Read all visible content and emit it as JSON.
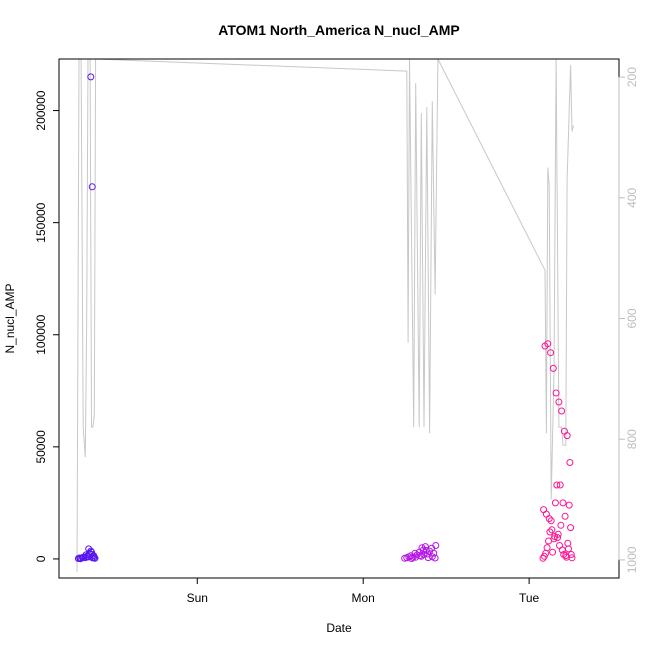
{
  "chart_data": {
    "type": "scatter",
    "title": "ATOM1 North_America N_nucl_AMP",
    "xlabel": "Date",
    "ylabel": "N_nucl_AMP",
    "x_ticks": [
      "Sun",
      "Mon",
      "Tue"
    ],
    "x_tick_hours": [
      24,
      48,
      72
    ],
    "xlim_hours": [
      4,
      85
    ],
    "ylim": [
      -8500,
      223000
    ],
    "y_ticks": [
      0,
      50000,
      100000,
      150000,
      200000
    ],
    "y_tick_labels": [
      "0",
      "50000",
      "100000",
      "150000",
      "200000"
    ],
    "right_axis": {
      "inverted": true,
      "ylim": [
        1030,
        170
      ],
      "ticks": [
        200,
        400,
        600,
        800,
        1000
      ],
      "tick_labels": [
        "200",
        "400",
        "600",
        "800",
        "1000"
      ],
      "color": "#bdbdbd"
    },
    "grid": false,
    "colors": {
      "line": "#c8c8c8",
      "point_start": "#5a16f0",
      "point_mid": "#b414e6",
      "point_end": "#ff1493"
    },
    "line_series": {
      "points": [
        [
          6.6,
          1020
        ],
        [
          6.9,
          170
        ],
        [
          7.2,
          170
        ],
        [
          7.5,
          780
        ],
        [
          7.8,
          830
        ],
        [
          8.0,
          600
        ],
        [
          8.2,
          170
        ],
        [
          8.5,
          170
        ],
        [
          8.7,
          780
        ],
        [
          8.9,
          780
        ],
        [
          9.1,
          760
        ],
        [
          9.3,
          170
        ],
        [
          54.3,
          190
        ],
        [
          54.5,
          640
        ],
        [
          54.7,
          170
        ],
        [
          55.3,
          780
        ],
        [
          55.6,
          210
        ],
        [
          56.1,
          780
        ],
        [
          56.4,
          260
        ],
        [
          56.8,
          780
        ],
        [
          57.2,
          250
        ],
        [
          57.6,
          790
        ],
        [
          58.0,
          240
        ],
        [
          58.4,
          560
        ],
        [
          58.8,
          170
        ],
        [
          74.3,
          520
        ],
        [
          74.5,
          790
        ],
        [
          74.7,
          350
        ],
        [
          74.9,
          380
        ],
        [
          75.2,
          900
        ],
        [
          75.6,
          690
        ],
        [
          75.9,
          170
        ],
        [
          76.3,
          780
        ],
        [
          76.7,
          780
        ],
        [
          76.9,
          810
        ],
        [
          77.3,
          810
        ],
        [
          77.5,
          370
        ],
        [
          78.0,
          180
        ],
        [
          78.2,
          290
        ],
        [
          78.4,
          280
        ]
      ]
    },
    "series": [
      {
        "x": [
          6.8,
          7.0,
          7.2,
          7.4,
          7.6,
          7.8,
          8.0,
          8.2,
          8.4,
          8.6,
          8.8,
          9.0,
          9.2,
          7.1,
          7.5,
          7.9,
          8.3,
          8.7,
          9.1,
          8.2,
          8.5,
          8.8,
          9.0,
          8.6,
          8.8
        ],
        "y": [
          200,
          400,
          300,
          600,
          800,
          500,
          1200,
          900,
          2500,
          3500,
          2000,
          1500,
          300,
          100,
          700,
          1800,
          4500,
          3000,
          800,
          1000,
          2200,
          600,
          400,
          215000,
          166000
        ]
      },
      {
        "x": [
          54.0,
          54.3,
          54.6,
          54.9,
          55.2,
          55.5,
          55.8,
          56.1,
          56.4,
          56.7,
          57.0,
          57.3,
          57.6,
          57.9,
          58.2,
          58.5,
          55.0,
          55.6,
          56.2,
          56.8,
          57.4,
          58.0,
          58.4,
          56.5,
          57.1
        ],
        "y": [
          300,
          500,
          900,
          1400,
          700,
          2500,
          1800,
          3000,
          1200,
          4000,
          5500,
          2200,
          3500,
          4800,
          2600,
          6000,
          200,
          800,
          1500,
          2000,
          600,
          1000,
          400,
          5000,
          3800
        ]
      },
      {
        "x": [
          74.0,
          74.2,
          74.4,
          74.6,
          74.8,
          75.0,
          75.2,
          75.4,
          75.6,
          75.8,
          76.0,
          76.2,
          76.4,
          76.6,
          76.8,
          77.0,
          77.2,
          77.4,
          77.6,
          77.8,
          78.0,
          78.2,
          74.3,
          74.7,
          75.1,
          75.5,
          75.9,
          76.3,
          76.7,
          77.1,
          77.5,
          77.9,
          74.1,
          74.5,
          74.9,
          75.3,
          75.7,
          76.1,
          76.5,
          76.9,
          77.3,
          77.7,
          78.1
        ],
        "y": [
          300,
          1200,
          2500,
          5000,
          8000,
          12000,
          17000,
          3000,
          9000,
          25000,
          33000,
          11000,
          6000,
          15000,
          4000,
          2000,
          19000,
          800,
          7000,
          24000,
          14000,
          500,
          95000,
          96000,
          92000,
          85000,
          74000,
          70000,
          66000,
          57000,
          55000,
          43000,
          22000,
          20000,
          18000,
          13000,
          10000,
          9500,
          33000,
          25000,
          1500,
          4500,
          2000
        ]
      }
    ]
  }
}
